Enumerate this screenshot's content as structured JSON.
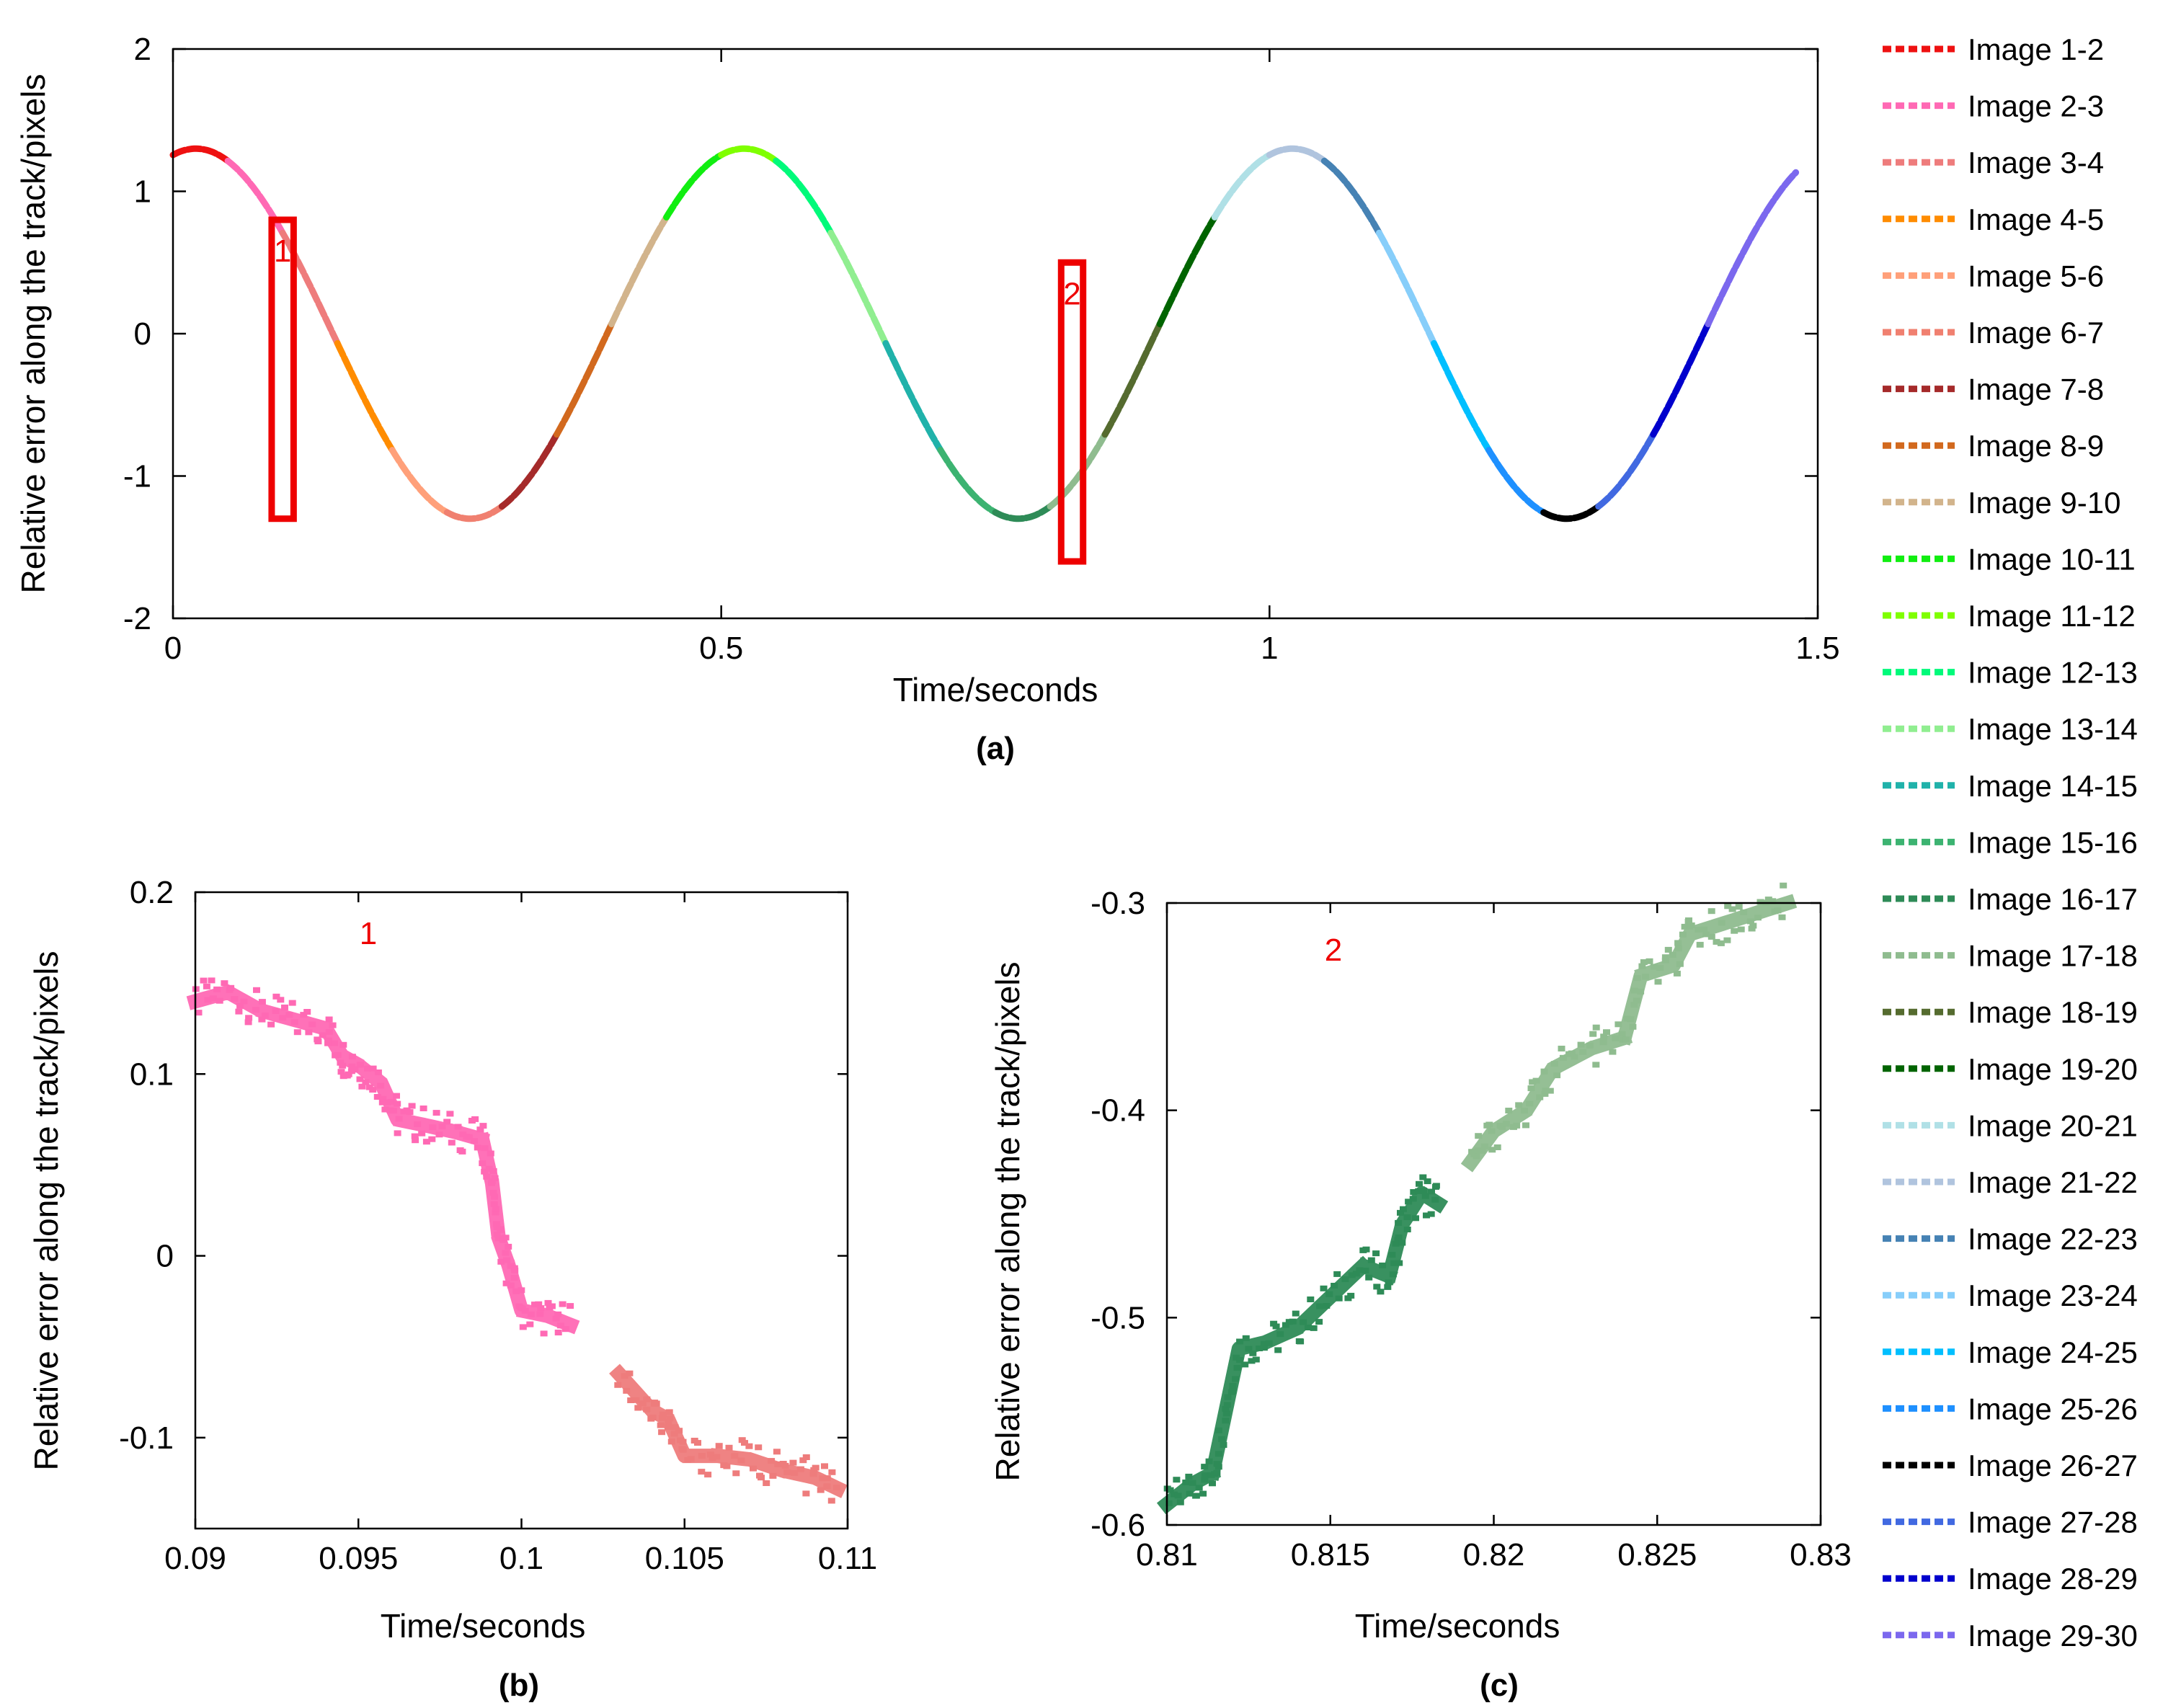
{
  "chart_data": [
    {
      "id": "a",
      "type": "line",
      "panel_label": "(a)",
      "xlabel": "Time/seconds",
      "ylabel": "Relative error along the track/pixels",
      "xlim": [
        0,
        1.5
      ],
      "ylim": [
        -2,
        2
      ],
      "xticks": [
        0,
        0.5,
        1,
        1.5
      ],
      "xtick_labels": [
        "0",
        "0.5",
        "1",
        "1.5"
      ],
      "yticks": [
        2,
        1,
        0,
        -1,
        -2
      ],
      "ytick_labels": [
        "2",
        "1",
        "0",
        "-1",
        "-2"
      ],
      "curve": {
        "form": "sine",
        "amplitude": 1.3,
        "period": 0.5,
        "phase_deg": 75,
        "x_start": 0.0,
        "x_end": 1.48,
        "segment_duration": 0.05
      },
      "series": [
        {
          "name": "Image 1-2",
          "color": "#ee1111",
          "x": [
            0.0,
            0.05
          ]
        },
        {
          "name": "Image 2-3",
          "color": "#ff69b4",
          "x": [
            0.05,
            0.1
          ]
        },
        {
          "name": "Image 3-4",
          "color": "#ee7c7c",
          "x": [
            0.1,
            0.15
          ]
        },
        {
          "name": "Image 4-5",
          "color": "#ff8c00",
          "x": [
            0.15,
            0.2
          ]
        },
        {
          "name": "Image 5-6",
          "color": "#ffa07a",
          "x": [
            0.2,
            0.25
          ]
        },
        {
          "name": "Image 6-7",
          "color": "#f08070",
          "x": [
            0.25,
            0.3
          ]
        },
        {
          "name": "Image 7-8",
          "color": "#a52a2a",
          "x": [
            0.3,
            0.35
          ]
        },
        {
          "name": "Image 8-9",
          "color": "#d2691e",
          "x": [
            0.35,
            0.4
          ]
        },
        {
          "name": "Image 9-10",
          "color": "#d2b48c",
          "x": [
            0.4,
            0.45
          ]
        },
        {
          "name": "Image 10-11",
          "color": "#11ee11",
          "x": [
            0.45,
            0.5
          ]
        },
        {
          "name": "Image 11-12",
          "color": "#7fff00",
          "x": [
            0.5,
            0.55
          ]
        },
        {
          "name": "Image 12-13",
          "color": "#00fa7a",
          "x": [
            0.55,
            0.6
          ]
        },
        {
          "name": "Image 13-14",
          "color": "#90ee90",
          "x": [
            0.6,
            0.65
          ]
        },
        {
          "name": "Image 14-15",
          "color": "#20b2aa",
          "x": [
            0.65,
            0.7
          ]
        },
        {
          "name": "Image 15-16",
          "color": "#3cb371",
          "x": [
            0.7,
            0.75
          ]
        },
        {
          "name": "Image 16-17",
          "color": "#2e8b57",
          "x": [
            0.75,
            0.8
          ]
        },
        {
          "name": "Image 17-18",
          "color": "#8fbc8f",
          "x": [
            0.8,
            0.85
          ]
        },
        {
          "name": "Image 18-19",
          "color": "#556b2f",
          "x": [
            0.85,
            0.9
          ]
        },
        {
          "name": "Image 19-20",
          "color": "#006400",
          "x": [
            0.9,
            0.95
          ]
        },
        {
          "name": "Image 20-21",
          "color": "#b0e0e6",
          "x": [
            0.95,
            1.0
          ]
        },
        {
          "name": "Image 21-22",
          "color": "#b0c4de",
          "x": [
            1.0,
            1.05
          ]
        },
        {
          "name": "Image 22-23",
          "color": "#4682b4",
          "x": [
            1.05,
            1.1
          ]
        },
        {
          "name": "Image 23-24",
          "color": "#87cefa",
          "x": [
            1.1,
            1.15
          ]
        },
        {
          "name": "Image 24-25",
          "color": "#00bfff",
          "x": [
            1.15,
            1.2
          ]
        },
        {
          "name": "Image 25-26",
          "color": "#1e90ff",
          "x": [
            1.2,
            1.25
          ]
        },
        {
          "name": "Image 26-27",
          "color": "#000000",
          "x": [
            1.25,
            1.3
          ]
        },
        {
          "name": "Image 27-28",
          "color": "#4169e1",
          "x": [
            1.3,
            1.35
          ]
        },
        {
          "name": "Image 28-29",
          "color": "#0000cd",
          "x": [
            1.35,
            1.4
          ]
        },
        {
          "name": "Image 29-30",
          "color": "#7b68ee",
          "x": [
            1.4,
            1.48
          ]
        }
      ],
      "annotations": [
        {
          "label": "1",
          "x_range": [
            0.09,
            0.11
          ],
          "y_range": [
            -1.3,
            0.8
          ]
        },
        {
          "label": "2",
          "x_range": [
            0.81,
            0.83
          ],
          "y_range": [
            -1.6,
            0.5
          ]
        }
      ]
    },
    {
      "id": "b",
      "type": "scatter",
      "panel_label": "(b)",
      "annotation": "1",
      "xlabel": "Time/seconds",
      "ylabel": "Relative error along the track/pixels",
      "xlim": [
        0.09,
        0.11
      ],
      "ylim": [
        -0.15,
        0.2
      ],
      "xticks": [
        0.09,
        0.095,
        0.1,
        0.105,
        0.11
      ],
      "xtick_labels": [
        "0.09",
        "0.095",
        "0.1",
        "0.105",
        "0.11"
      ],
      "yticks": [
        0.2,
        0.1,
        0,
        -0.1
      ],
      "ytick_labels": [
        "0.2",
        "0.1",
        "0",
        "-0.1"
      ],
      "series": [
        {
          "name": "Image 2-3",
          "color": "#ff69b4",
          "x": [
            0.09,
            0.091,
            0.092,
            0.093,
            0.094,
            0.0945,
            0.095,
            0.0957,
            0.0962,
            0.097,
            0.098,
            0.0988,
            0.0991,
            0.0993,
            0.0996,
            0.1,
            0.1008,
            0.1015
          ],
          "y": [
            0.14,
            0.145,
            0.135,
            0.13,
            0.125,
            0.11,
            0.105,
            0.095,
            0.075,
            0.072,
            0.068,
            0.064,
            0.04,
            0.01,
            -0.005,
            -0.03,
            -0.033,
            -0.038
          ]
        },
        {
          "name": "Image 3-4",
          "color": "#ee7c7c",
          "x": [
            0.103,
            0.104,
            0.1045,
            0.105,
            0.106,
            0.107,
            0.108,
            0.109,
            0.1097
          ],
          "y": [
            -0.065,
            -0.085,
            -0.09,
            -0.11,
            -0.11,
            -0.112,
            -0.118,
            -0.122,
            -0.128
          ]
        }
      ]
    },
    {
      "id": "c",
      "type": "scatter",
      "panel_label": "(c)",
      "annotation": "2",
      "xlabel": "Time/seconds",
      "ylabel": "Relative error along the track/pixels",
      "xlim": [
        0.81,
        0.83
      ],
      "ylim": [
        -0.6,
        -0.3
      ],
      "xticks": [
        0.81,
        0.815,
        0.82,
        0.825,
        0.83
      ],
      "xtick_labels": [
        "0.81",
        "0.815",
        "0.82",
        "0.825",
        "0.83"
      ],
      "yticks": [
        -0.3,
        -0.4,
        -0.5,
        -0.6
      ],
      "ytick_labels": [
        "-0.3",
        "-0.4",
        "-0.5",
        "-0.6"
      ],
      "series": [
        {
          "name": "Image 16-17",
          "color": "#2e8b57",
          "x": [
            0.81,
            0.8108,
            0.8114,
            0.8118,
            0.8122,
            0.813,
            0.814,
            0.815,
            0.816,
            0.8168,
            0.8172,
            0.8178,
            0.8183
          ],
          "y": [
            -0.59,
            -0.58,
            -0.575,
            -0.545,
            -0.515,
            -0.512,
            -0.505,
            -0.49,
            -0.475,
            -0.48,
            -0.455,
            -0.44,
            -0.445
          ]
        },
        {
          "name": "Image 17-18",
          "color": "#8fbc8f",
          "x": [
            0.8193,
            0.82,
            0.821,
            0.8218,
            0.823,
            0.824,
            0.8245,
            0.8255,
            0.826,
            0.827,
            0.828,
            0.829
          ],
          "y": [
            -0.425,
            -0.41,
            -0.4,
            -0.38,
            -0.37,
            -0.365,
            -0.335,
            -0.33,
            -0.315,
            -0.31,
            -0.305,
            -0.3
          ]
        }
      ]
    }
  ]
}
